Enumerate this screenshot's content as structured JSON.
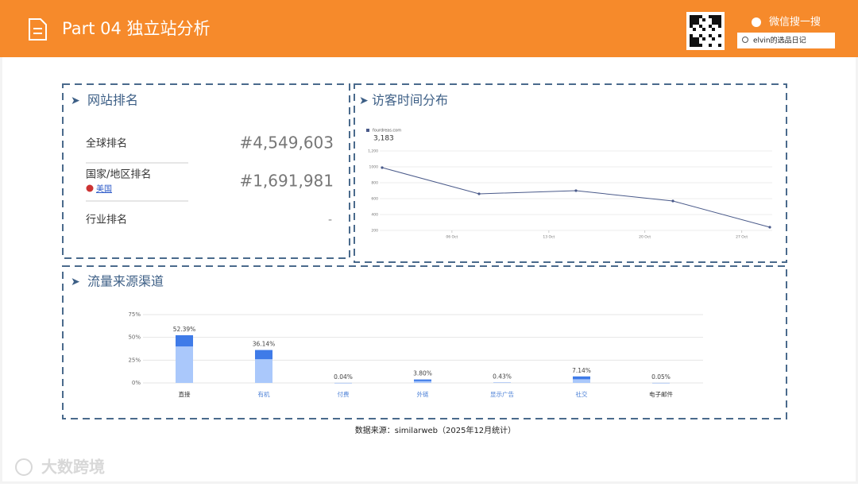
{
  "header": {
    "title": "Part 04 独立站分析",
    "wechat": "微信搜一搜",
    "search": "elvin的选品日记"
  },
  "ranking": {
    "title": "网站排名",
    "rows": [
      {
        "label": "全球排名",
        "value": "#4,549,603"
      },
      {
        "label": "国家/地区排名",
        "sub": "美国",
        "value": "#1,691,981"
      },
      {
        "label": "行业排名",
        "value": "-"
      }
    ]
  },
  "chart_data": [
    {
      "type": "line",
      "title": "访客时间分布",
      "legend_label": "fourdreas.com",
      "total_label": "3,183",
      "x": [
        0,
        1,
        2,
        3,
        4
      ],
      "xlim": [
        0,
        4
      ],
      "xticks": [
        {
          "value": 0.72,
          "label": "06 Oct"
        },
        {
          "value": 1.72,
          "label": "13 Oct"
        },
        {
          "value": 2.71,
          "label": "20 Oct"
        },
        {
          "value": 3.71,
          "label": "27 Oct"
        }
      ],
      "ylim": [
        200,
        1200
      ],
      "yticks": [
        200,
        400,
        600,
        800,
        1000,
        {
          "value": 1200,
          "label": "1,200"
        }
      ],
      "grid": true,
      "series": [
        {
          "color": "#4a5a8a",
          "values": [
            990,
            660,
            700,
            570,
            240
          ]
        }
      ]
    },
    {
      "type": "bar",
      "title": "流量来源渠道",
      "stacked": true,
      "categories": [
        "直接",
        "有机",
        "付费",
        "外链",
        "显示广告",
        "社交",
        "电子邮件"
      ],
      "category_colors": [
        "#333333",
        "#4a7fd6",
        "#4a7fd6",
        "#4a7fd6",
        "#4a7fd6",
        "#4a7fd6",
        "#333333"
      ],
      "series": [
        {
          "color": "#aac8fb",
          "values": [
            40,
            26,
            0.03,
            1.9,
            0.3,
            4.0,
            0.03
          ]
        },
        {
          "color": "#3f7be8",
          "values": [
            12.39,
            10.14,
            0.01,
            1.9,
            0.13,
            3.14,
            0.02
          ]
        }
      ],
      "totals": [
        52.39,
        36.14,
        0.04,
        3.8,
        0.43,
        7.14,
        0.05
      ],
      "value_labels": [
        "52.39%",
        "36.14%",
        "0.04%",
        "3.80%",
        "0.43%",
        "7.14%",
        "0.05%"
      ],
      "ylim": [
        0,
        75
      ],
      "yticks": [
        {
          "value": 0,
          "label": "0%"
        },
        {
          "value": 25,
          "label": "25%"
        },
        {
          "value": 50,
          "label": "50%"
        },
        {
          "value": 75,
          "label": "75%"
        }
      ],
      "grid": true
    }
  ],
  "footer": {
    "source": "数据来源：similarweb（2025年12月统计）",
    "watermark": "大数跨境"
  }
}
